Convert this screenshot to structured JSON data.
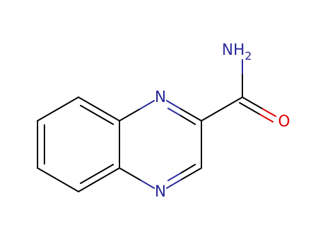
{
  "atoms": [
    {
      "label": "N"
    },
    {
      "label": "N"
    },
    {
      "label": "NH",
      "subscript": "2"
    },
    {
      "label": "O"
    }
  ]
}
